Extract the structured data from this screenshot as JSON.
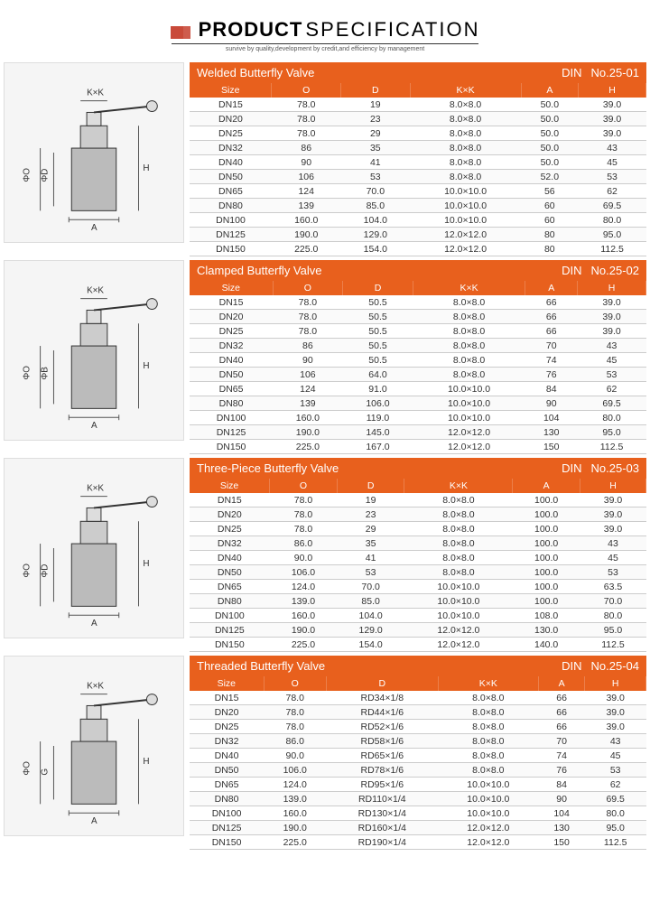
{
  "header": {
    "title_bold": "PRODUCT",
    "title_light": "SPECIFICATION",
    "tagline": "survive by quality,development by credit,and efficiency by management"
  },
  "columns": [
    "Size",
    "O",
    "D",
    "K×K",
    "A",
    "H"
  ],
  "diagram_labels": {
    "kxk": "K×K",
    "h": "H",
    "a": "A",
    "phio": "ΦO",
    "phid": "ΦD",
    "phib": "ΦB",
    "g": "G"
  },
  "sections": [
    {
      "title": "Welded Butterfly Valve",
      "std": "DIN",
      "no": "No.25-01",
      "dim2": "ΦD",
      "rows": [
        [
          "DN15",
          "78.0",
          "19",
          "8.0×8.0",
          "50.0",
          "39.0"
        ],
        [
          "DN20",
          "78.0",
          "23",
          "8.0×8.0",
          "50.0",
          "39.0"
        ],
        [
          "DN25",
          "78.0",
          "29",
          "8.0×8.0",
          "50.0",
          "39.0"
        ],
        [
          "DN32",
          "86",
          "35",
          "8.0×8.0",
          "50.0",
          "43"
        ],
        [
          "DN40",
          "90",
          "41",
          "8.0×8.0",
          "50.0",
          "45"
        ],
        [
          "DN50",
          "106",
          "53",
          "8.0×8.0",
          "52.0",
          "53"
        ],
        [
          "DN65",
          "124",
          "70.0",
          "10.0×10.0",
          "56",
          "62"
        ],
        [
          "DN80",
          "139",
          "85.0",
          "10.0×10.0",
          "60",
          "69.5"
        ],
        [
          "DN100",
          "160.0",
          "104.0",
          "10.0×10.0",
          "60",
          "80.0"
        ],
        [
          "DN125",
          "190.0",
          "129.0",
          "12.0×12.0",
          "80",
          "95.0"
        ],
        [
          "DN150",
          "225.0",
          "154.0",
          "12.0×12.0",
          "80",
          "112.5"
        ]
      ]
    },
    {
      "title": "Clamped Butterfly Valve",
      "std": "DIN",
      "no": "No.25-02",
      "dim2": "ΦB",
      "rows": [
        [
          "DN15",
          "78.0",
          "50.5",
          "8.0×8.0",
          "66",
          "39.0"
        ],
        [
          "DN20",
          "78.0",
          "50.5",
          "8.0×8.0",
          "66",
          "39.0"
        ],
        [
          "DN25",
          "78.0",
          "50.5",
          "8.0×8.0",
          "66",
          "39.0"
        ],
        [
          "DN32",
          "86",
          "50.5",
          "8.0×8.0",
          "70",
          "43"
        ],
        [
          "DN40",
          "90",
          "50.5",
          "8.0×8.0",
          "74",
          "45"
        ],
        [
          "DN50",
          "106",
          "64.0",
          "8.0×8.0",
          "76",
          "53"
        ],
        [
          "DN65",
          "124",
          "91.0",
          "10.0×10.0",
          "84",
          "62"
        ],
        [
          "DN80",
          "139",
          "106.0",
          "10.0×10.0",
          "90",
          "69.5"
        ],
        [
          "DN100",
          "160.0",
          "119.0",
          "10.0×10.0",
          "104",
          "80.0"
        ],
        [
          "DN125",
          "190.0",
          "145.0",
          "12.0×12.0",
          "130",
          "95.0"
        ],
        [
          "DN150",
          "225.0",
          "167.0",
          "12.0×12.0",
          "150",
          "112.5"
        ]
      ]
    },
    {
      "title": "Three-Piece Butterfly Valve",
      "std": "DIN",
      "no": "No.25-03",
      "dim2": "ΦD",
      "rows": [
        [
          "DN15",
          "78.0",
          "19",
          "8.0×8.0",
          "100.0",
          "39.0"
        ],
        [
          "DN20",
          "78.0",
          "23",
          "8.0×8.0",
          "100.0",
          "39.0"
        ],
        [
          "DN25",
          "78.0",
          "29",
          "8.0×8.0",
          "100.0",
          "39.0"
        ],
        [
          "DN32",
          "86.0",
          "35",
          "8.0×8.0",
          "100.0",
          "43"
        ],
        [
          "DN40",
          "90.0",
          "41",
          "8.0×8.0",
          "100.0",
          "45"
        ],
        [
          "DN50",
          "106.0",
          "53",
          "8.0×8.0",
          "100.0",
          "53"
        ],
        [
          "DN65",
          "124.0",
          "70.0",
          "10.0×10.0",
          "100.0",
          "63.5"
        ],
        [
          "DN80",
          "139.0",
          "85.0",
          "10.0×10.0",
          "100.0",
          "70.0"
        ],
        [
          "DN100",
          "160.0",
          "104.0",
          "10.0×10.0",
          "108.0",
          "80.0"
        ],
        [
          "DN125",
          "190.0",
          "129.0",
          "12.0×12.0",
          "130.0",
          "95.0"
        ],
        [
          "DN150",
          "225.0",
          "154.0",
          "12.0×12.0",
          "140.0",
          "112.5"
        ]
      ]
    },
    {
      "title": "Threaded Butterfly Valve",
      "std": "DIN",
      "no": "No.25-04",
      "dim2": "G",
      "rows": [
        [
          "DN15",
          "78.0",
          "RD34×1/8",
          "8.0×8.0",
          "66",
          "39.0"
        ],
        [
          "DN20",
          "78.0",
          "RD44×1/6",
          "8.0×8.0",
          "66",
          "39.0"
        ],
        [
          "DN25",
          "78.0",
          "RD52×1/6",
          "8.0×8.0",
          "66",
          "39.0"
        ],
        [
          "DN32",
          "86.0",
          "RD58×1/6",
          "8.0×8.0",
          "70",
          "43"
        ],
        [
          "DN40",
          "90.0",
          "RD65×1/6",
          "8.0×8.0",
          "74",
          "45"
        ],
        [
          "DN50",
          "106.0",
          "RD78×1/6",
          "8.0×8.0",
          "76",
          "53"
        ],
        [
          "DN65",
          "124.0",
          "RD95×1/6",
          "10.0×10.0",
          "84",
          "62"
        ],
        [
          "DN80",
          "139.0",
          "RD110×1/4",
          "10.0×10.0",
          "90",
          "69.5"
        ],
        [
          "DN100",
          "160.0",
          "RD130×1/4",
          "10.0×10.0",
          "104",
          "80.0"
        ],
        [
          "DN125",
          "190.0",
          "RD160×1/4",
          "12.0×12.0",
          "130",
          "95.0"
        ],
        [
          "DN150",
          "225.0",
          "RD190×1/4",
          "12.0×12.0",
          "150",
          "112.5"
        ]
      ]
    }
  ],
  "colors": {
    "accent": "#e8601d",
    "logo": "#c94a3a"
  }
}
